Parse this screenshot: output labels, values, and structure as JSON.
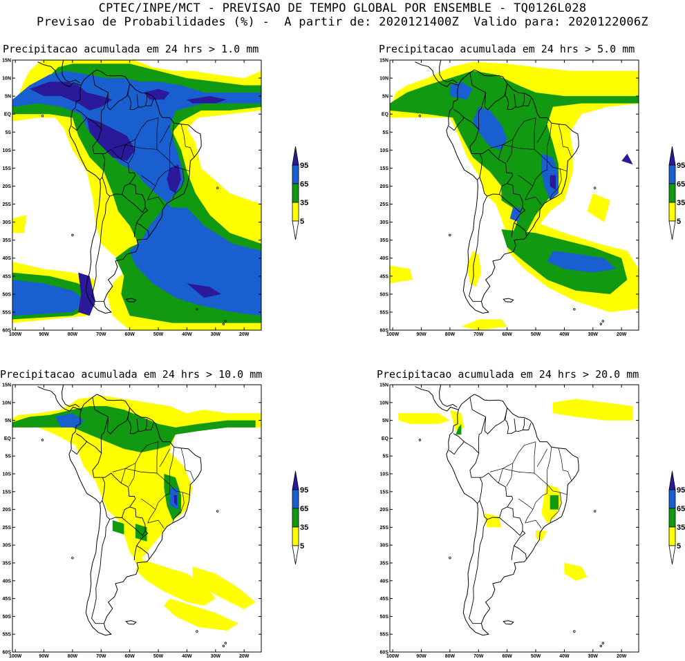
{
  "header": {
    "line1": "CPTEC/INPE/MCT - PREVISAO DE TEMPO GLOBAL POR ENSEMBLE - TQ0126L028",
    "line2": "Previsao de Probabilidades (%) -  A partir de: 2020121400Z  Valido para: 2020122006Z"
  },
  "colors": {
    "p5": "#ffff00",
    "p35": "#119911",
    "p65": "#1a5fd0",
    "p95": "#2a1a9a",
    "land_line": "#000000"
  },
  "axes": {
    "lat_labels": [
      "15N",
      "10N",
      "5N",
      "EQ",
      "5S",
      "10S",
      "15S",
      "20S",
      "25S",
      "30S",
      "35S",
      "40S",
      "45S",
      "50S",
      "55S",
      "60S"
    ],
    "lon_labels": [
      "100W",
      "90W",
      "80W",
      "70W",
      "60W",
      "50W",
      "40W",
      "30W",
      "20W"
    ]
  },
  "colorbar": {
    "levels": [
      "95",
      "65",
      "35",
      "5"
    ],
    "level_colors": [
      "#2a1a9a",
      "#1a5fd0",
      "#119911",
      "#ffff00"
    ]
  },
  "panels": [
    {
      "title": "Precipitacao acumulada em 24 hrs > 1.0 mm",
      "threshold": "1.0 mm",
      "coverage": "high"
    },
    {
      "title": "Precipitacao acumulada em 24 hrs > 5.0 mm",
      "threshold": "5.0 mm",
      "coverage": "medium"
    },
    {
      "title": "Precipitacao acumulada em 24 hrs > 10.0 mm",
      "threshold": "10.0 mm",
      "coverage": "low"
    },
    {
      "title": "Precipitacao acumulada em 24 hrs > 20.0 mm",
      "threshold": "20.0 mm",
      "coverage": "minimal"
    }
  ]
}
